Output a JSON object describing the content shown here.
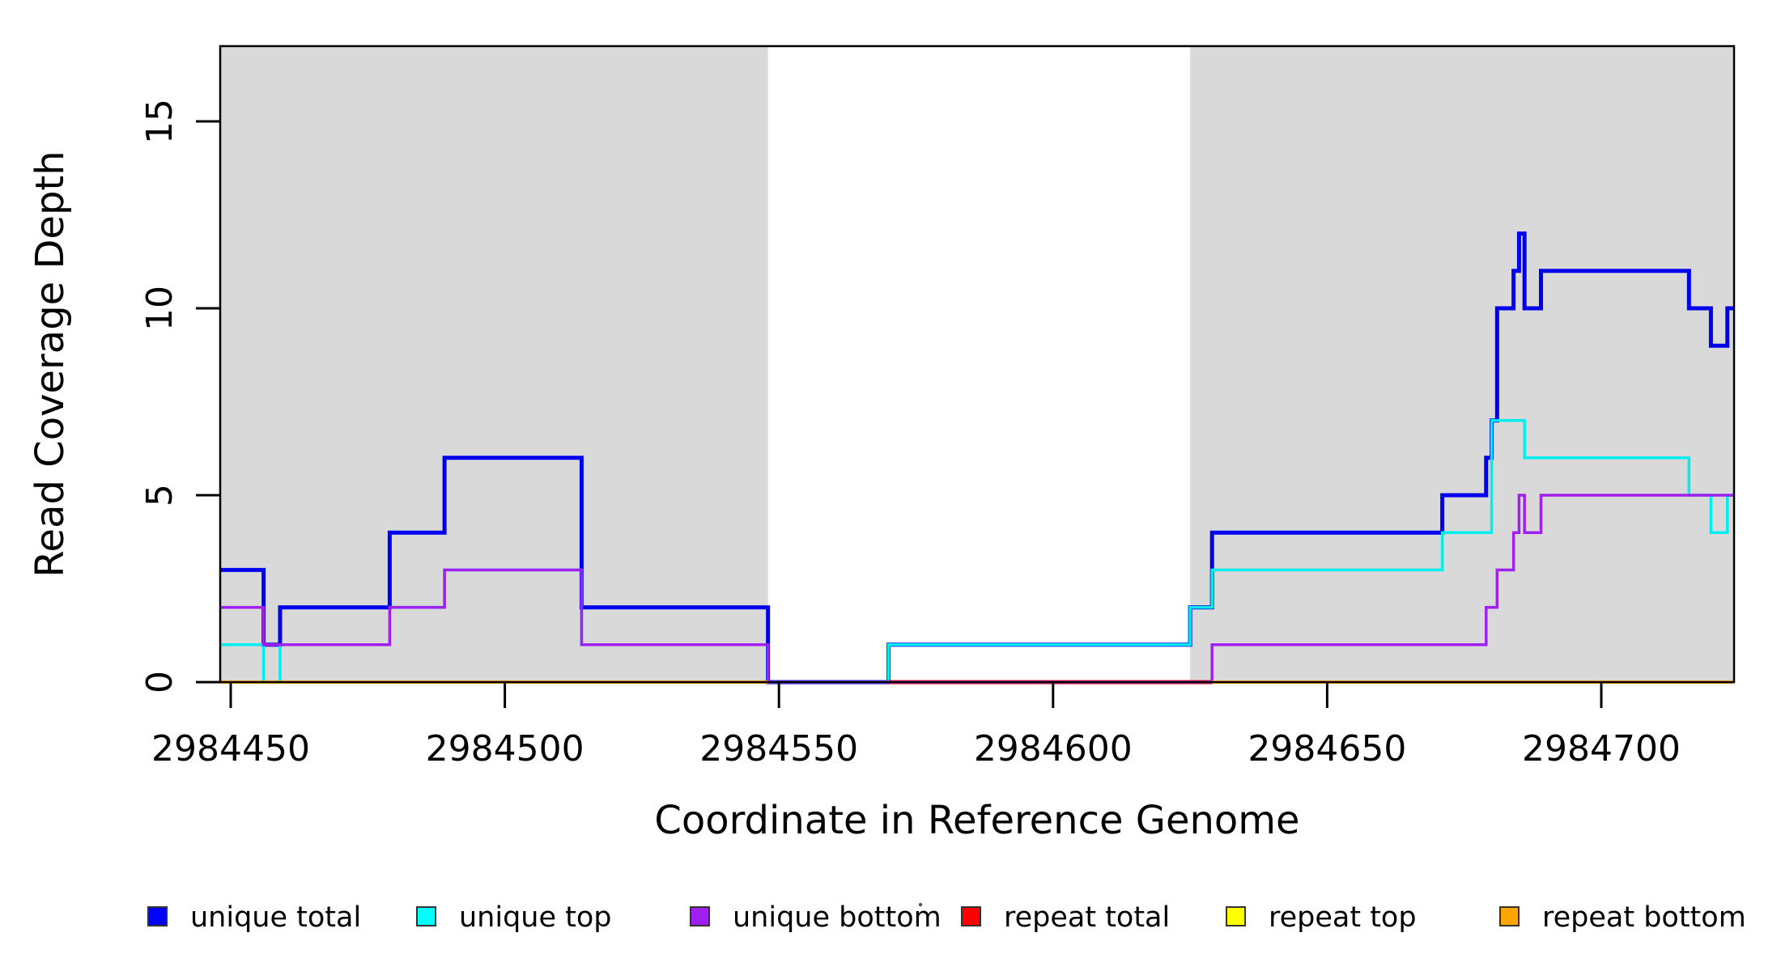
{
  "chart_data": {
    "type": "line",
    "subtype": "step",
    "title": "",
    "xlabel": "Coordinate in Reference Genome",
    "ylabel": "Read Coverage Depth",
    "xlim": [
      2984448,
      2984724
    ],
    "ylim": [
      0,
      17
    ],
    "grid": false,
    "x_ticks": [
      "2984450",
      "2984500",
      "2984550",
      "2984600",
      "2984650",
      "2984700"
    ],
    "x_tick_values": [
      2984450,
      2984500,
      2984550,
      2984600,
      2984650,
      2984700
    ],
    "y_ticks": [
      "0",
      "5",
      "10",
      "15"
    ],
    "y_tick_values": [
      0,
      5,
      10,
      15
    ],
    "shaded_regions": [
      {
        "name": "left-gray-region",
        "from": 2984448,
        "to": 2984548,
        "color": "#d9d9d9"
      },
      {
        "name": "right-gray-region",
        "from": 2984625,
        "to": 2984724,
        "color": "#d9d9d9"
      }
    ],
    "legend_position": "bottom",
    "series": [
      {
        "name": "unique total",
        "color": "#0000ee",
        "swatch": "#0000ff",
        "width": 5,
        "points": [
          [
            2984448,
            3
          ],
          [
            2984456,
            1
          ],
          [
            2984459,
            2
          ],
          [
            2984479,
            4
          ],
          [
            2984489,
            6
          ],
          [
            2984514,
            2
          ],
          [
            2984548,
            0
          ],
          [
            2984570,
            1
          ],
          [
            2984625,
            2
          ],
          [
            2984629,
            4
          ],
          [
            2984671,
            5
          ],
          [
            2984679,
            6
          ],
          [
            2984680,
            7
          ],
          [
            2984681,
            10
          ],
          [
            2984684,
            11
          ],
          [
            2984685,
            12
          ],
          [
            2984686,
            10
          ],
          [
            2984689,
            11
          ],
          [
            2984716,
            10
          ],
          [
            2984720,
            9
          ],
          [
            2984723,
            10
          ]
        ]
      },
      {
        "name": "unique top",
        "color": "#00eeee",
        "swatch": "#00ffff",
        "width": 3.5,
        "points": [
          [
            2984448,
            1
          ],
          [
            2984456,
            0
          ],
          [
            2984459,
            1
          ],
          [
            2984479,
            2
          ],
          [
            2984489,
            3
          ],
          [
            2984514,
            1
          ],
          [
            2984548,
            0
          ],
          [
            2984570,
            1
          ],
          [
            2984625,
            2
          ],
          [
            2984629,
            3
          ],
          [
            2984671,
            4
          ],
          [
            2984680,
            7
          ],
          [
            2984686,
            6
          ],
          [
            2984716,
            5
          ],
          [
            2984720,
            4
          ],
          [
            2984723,
            5
          ]
        ]
      },
      {
        "name": "unique bottom",
        "color": "#a020f0",
        "swatch": "#a020f0",
        "width": 3.5,
        "points": [
          [
            2984448,
            2
          ],
          [
            2984456,
            1
          ],
          [
            2984479,
            2
          ],
          [
            2984489,
            3
          ],
          [
            2984514,
            1
          ],
          [
            2984548,
            0
          ],
          [
            2984629,
            1
          ],
          [
            2984679,
            2
          ],
          [
            2984681,
            3
          ],
          [
            2984684,
            4
          ],
          [
            2984685,
            5
          ],
          [
            2984686,
            4
          ],
          [
            2984689,
            5
          ]
        ]
      },
      {
        "name": "repeat total",
        "color": "#ff0000",
        "swatch": "#ff0000",
        "width": 5,
        "value": 0,
        "segments": [
          [
            2984570,
            2984629
          ]
        ]
      },
      {
        "name": "repeat top",
        "color": "#ffff00",
        "swatch": "#ffff00",
        "width": 3,
        "value": 0,
        "segments": [
          [
            2984448,
            2984548
          ],
          [
            2984629,
            2984724
          ]
        ]
      },
      {
        "name": "repeat bottom",
        "color": "#ffa500",
        "swatch": "#ffa500",
        "width": 4,
        "value": 0,
        "segments": [
          [
            2984448,
            2984548
          ],
          [
            2984629,
            2984724
          ]
        ]
      }
    ],
    "draw_order": [
      "unique total",
      "unique top",
      "repeat total",
      "repeat top",
      "unique bottom",
      "repeat bottom"
    ],
    "legend": [
      {
        "label": "unique total",
        "color": "#0000ff"
      },
      {
        "label": "unique top",
        "color": "#00ffff"
      },
      {
        "label": "unique bottom",
        "color": "#a020f0"
      },
      {
        "label": "repeat total",
        "color": "#ff0000"
      },
      {
        "label": "repeat top",
        "color": "#ffff00"
      },
      {
        "label": "repeat bottom",
        "color": "#ffa500"
      }
    ],
    "plot_box_color": "#000000",
    "stray_dot": "·"
  }
}
